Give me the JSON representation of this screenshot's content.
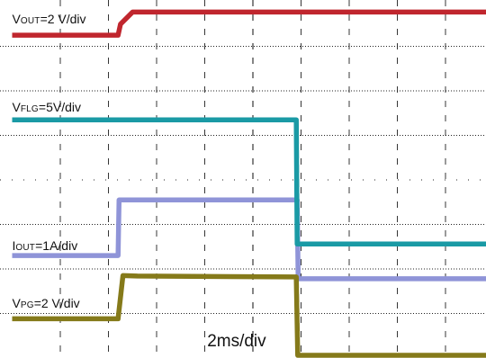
{
  "chart_data": {
    "type": "line",
    "title": "",
    "x_unit": "ms",
    "time_scale": "2ms/div",
    "x_divisions": 10,
    "y_divisions": 8,
    "xlim": [
      0,
      10
    ],
    "ylim": [
      0,
      8
    ],
    "grid": true,
    "gridlines_dashed": true,
    "colors": {
      "vout": "#c0262e",
      "vflg": "#1a9aa5",
      "iout": "#8f94d8",
      "vpg": "#857a1a",
      "grid": "#222222",
      "background": "#ffffff"
    },
    "labels": {
      "vout": {
        "main": "V",
        "sub": "OUT",
        "rest": "=2 V/div"
      },
      "vflg": {
        "main": "V",
        "sub": "FLG",
        "rest": "=5V/div"
      },
      "iout": {
        "main": "I",
        "sub": "OUT",
        "rest": "=1A/div"
      },
      "vpg": {
        "main": "V",
        "sub": "PG",
        "rest": "=2 V/div"
      }
    },
    "series": [
      {
        "id": "vout",
        "x": [
          0,
          2.2,
          2.25,
          2.5,
          10
        ],
        "y": [
          7.25,
          7.25,
          7.5,
          7.77,
          7.77
        ]
      },
      {
        "id": "vflg",
        "x": [
          0,
          5.9,
          5.92,
          10
        ],
        "y": [
          5.35,
          5.35,
          2.56,
          2.56
        ]
      },
      {
        "id": "iout",
        "x": [
          0,
          2.2,
          2.22,
          5.92,
          5.94,
          10
        ],
        "y": [
          2.3,
          2.3,
          3.55,
          3.55,
          1.78,
          1.78
        ]
      },
      {
        "id": "vpg",
        "x": [
          0,
          2.2,
          2.3,
          2.6,
          5.9,
          5.93,
          6.1,
          10
        ],
        "y": [
          0.88,
          0.88,
          1.85,
          1.84,
          1.82,
          0.06,
          0.06,
          0.06
        ]
      }
    ]
  }
}
